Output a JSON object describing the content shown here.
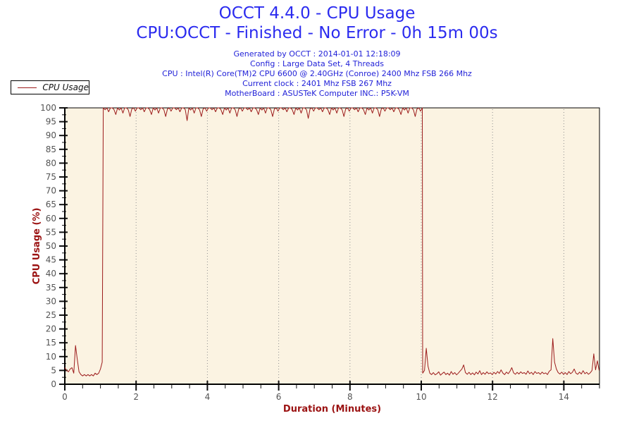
{
  "header": {
    "title": "OCCT 4.4.0 - CPU Usage",
    "subtitle": "CPU:OCCT - Finished - No Error - 0h 15m 00s",
    "info_lines": [
      "Generated by OCCT : 2014-01-01 12:18:09",
      "Config : Large Data Set, 4 Threads",
      "CPU : Intel(R) Core(TM)2 CPU 6600 @ 2.40GHz (Conroe) 2400 Mhz FSB 266 Mhz",
      "Current clock : 2401 Mhz FSB 267 Mhz",
      "MotherBoard : ASUSTeK Computer INC.: P5K-VM"
    ]
  },
  "legend": {
    "label": "CPU Usage"
  },
  "colors": {
    "title_blue": "#2b2bef",
    "info_blue": "#2222d8",
    "axis_title_red": "#9b1212",
    "series_red": "#9c1b1b",
    "plot_bg": "#fbf3e2",
    "grid_gray": "#8f8f8f",
    "tick_black": "#111111",
    "tick_label_gray": "#545454"
  },
  "chart_data": {
    "type": "line",
    "title": "OCCT 4.4.0 - CPU Usage",
    "legend_position": "top-left",
    "grid": {
      "vertical_dotted_at_major": true,
      "horizontal": false
    },
    "x_axis": {
      "label": "Duration (Minutes)",
      "min": 0,
      "max": 15,
      "major_step": 2,
      "minor_step": 0.5,
      "tick_labels": [
        "0",
        "2",
        "4",
        "6",
        "8",
        "10",
        "12",
        "14"
      ]
    },
    "y_axis": {
      "label": "CPU Usage (%)",
      "min": 0,
      "max": 100,
      "major_step": 5,
      "minor_step": 2.5,
      "tick_labels": [
        "0",
        "5",
        "10",
        "15",
        "20",
        "25",
        "30",
        "35",
        "40",
        "45",
        "50",
        "55",
        "60",
        "65",
        "70",
        "75",
        "80",
        "85",
        "90",
        "95",
        "100"
      ]
    },
    "series": [
      {
        "name": "CPU Usage",
        "color": "#9c1b1b",
        "segments": [
          {
            "x_start": 0.0,
            "x_step": 0.05,
            "values": [
              6,
              5,
              4.5,
              5.5,
              6,
              4,
              14,
              9,
              4.5,
              3.5,
              3,
              3.5,
              3,
              3.5,
              3,
              3.5,
              3,
              4,
              3.5,
              4,
              5.5,
              8
            ]
          },
          {
            "x_start": 1.08,
            "x_step": 0.05,
            "values": [
              100,
              99.3,
              100,
              98.6,
              100,
              100,
              99.4,
              97.6,
              100,
              99.2,
              100,
              98.1,
              100,
              100,
              99.3,
              96.9,
              99.6,
              100,
              98.8,
              100,
              100,
              99.3,
              100,
              98.6,
              100,
              100,
              99.4,
              97.6,
              100,
              99.2,
              100,
              98.1,
              100,
              100,
              99.3,
              96.9,
              99.6,
              100,
              98.8,
              100,
              100,
              99.3,
              100,
              98.6,
              100,
              100,
              99.4,
              95.4,
              100,
              99.2,
              100,
              98.1,
              100,
              100,
              99.3,
              96.9,
              99.6,
              100,
              98.8,
              100,
              100,
              99.3,
              100,
              98.6,
              100,
              100,
              99.4,
              97.6,
              100,
              99.2,
              100,
              98.1,
              100,
              100,
              99.3,
              96.9,
              99.6,
              100,
              98.8,
              100,
              100,
              99.3,
              100,
              98.6,
              100,
              100,
              99.4,
              97.6,
              100,
              99.2,
              100,
              98.1,
              100,
              100,
              99.3,
              96.9,
              99.6,
              100,
              98.8,
              100,
              100,
              99.3,
              100,
              98.6,
              100,
              100,
              99.4,
              97.6,
              100,
              99.2,
              100,
              98.1,
              100,
              100,
              99.3,
              96.2,
              99.6,
              100,
              98.8,
              100,
              100,
              99.3,
              100,
              98.6,
              100,
              100,
              99.4,
              97.6,
              100,
              99.2,
              100,
              98.1,
              100,
              100,
              99.3,
              96.9,
              99.6,
              100,
              98.8,
              100,
              100,
              99.3,
              100,
              98.6,
              100,
              100,
              99.4,
              97.6,
              100,
              99.2,
              100,
              98.1,
              100,
              100,
              99.3,
              96.9,
              99.6,
              100,
              98.8,
              100,
              100,
              99.3,
              100,
              98.6,
              100,
              100,
              99.4,
              97.6,
              100,
              99.2,
              100,
              98.1,
              100,
              100,
              99.3,
              96.9,
              99.6,
              100,
              98.8,
              100
            ]
          },
          {
            "x_start": 10.04,
            "x_step": 0.05,
            "values": [
              4,
              5,
              13,
              6.5,
              4,
              3.5,
              4.2,
              3.4,
              3.8,
              4.5,
              3.3,
              3.9,
              4.4,
              3.5,
              4,
              3.3,
              4.6,
              3.6,
              4.2,
              3.4,
              4,
              4.8,
              5.5,
              7,
              4.2,
              3.6,
              4.3,
              3.5,
              4.1,
              3.4,
              4.4,
              3.7,
              4.9,
              3.5,
              4.2,
              3.6,
              4.5,
              3.8,
              4.1,
              3.5,
              4.3,
              3.7,
              4.6,
              3.9,
              5.2,
              4,
              3.5,
              4.4,
              3.8,
              4.7,
              6,
              4.1,
              3.6,
              4.3,
              3.7,
              4.5,
              3.9,
              4.2,
              3.6,
              4.8,
              3.8,
              4.3,
              3.5,
              4.6,
              3.9,
              4.2,
              3.6,
              4.4,
              3.8,
              4.1,
              3.5,
              4.7,
              5.2,
              16.5,
              8,
              5.5,
              4.2,
              3.7,
              4.4,
              3.6,
              4.2,
              3.5,
              4.6,
              3.8,
              4.3,
              5.5,
              4,
              3.6,
              4.4,
              3.7,
              4.9,
              3.8,
              4.3,
              3.6,
              4.1,
              5,
              11,
              5.2,
              8.5,
              5
            ]
          }
        ]
      }
    ]
  }
}
